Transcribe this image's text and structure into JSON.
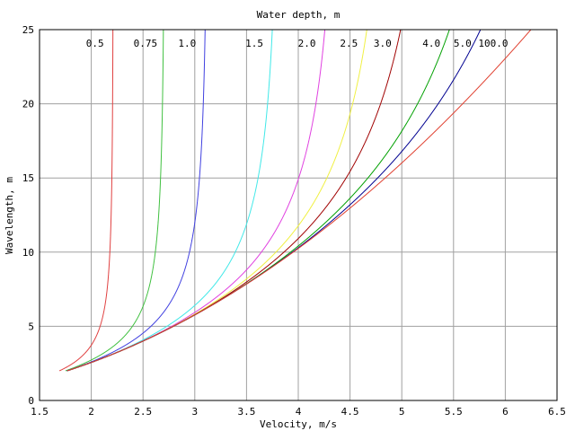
{
  "chart_data": {
    "type": "line",
    "title": "Water depth, m",
    "xlabel": "Velocity, m/s",
    "ylabel": "Wavelength, m",
    "xlim": [
      1.5,
      6.5
    ],
    "ylim": [
      0,
      25
    ],
    "x_ticks": [
      1.5,
      2,
      2.5,
      3,
      3.5,
      4,
      4.5,
      5,
      5.5,
      6,
      6.5
    ],
    "x_tick_labels": [
      "1.5",
      "2",
      "2.5",
      "3",
      "3.5",
      "4",
      "4.5",
      "5",
      "5.5",
      "6",
      "6.5"
    ],
    "y_ticks": [
      0,
      5,
      10,
      15,
      20,
      25
    ],
    "y_tick_labels": [
      "0",
      "5",
      "10",
      "15",
      "20",
      "25"
    ],
    "grid": true,
    "series": [
      {
        "name": "0.5",
        "depth": 0.5,
        "color": "#e04040"
      },
      {
        "name": "0.75",
        "depth": 0.75,
        "color": "#40c040"
      },
      {
        "name": "1.0",
        "depth": 1.0,
        "color": "#4040e0"
      },
      {
        "name": "1.5",
        "depth": 1.5,
        "color": "#40e8e8"
      },
      {
        "name": "2.0",
        "depth": 2.0,
        "color": "#e040e0"
      },
      {
        "name": "2.5",
        "depth": 2.5,
        "color": "#f0f040"
      },
      {
        "name": "3.0",
        "depth": 3.0,
        "color": "#a00000"
      },
      {
        "name": "4.0",
        "depth": 4.0,
        "color": "#00a000"
      },
      {
        "name": "5.0",
        "depth": 5.0,
        "color": "#000090"
      },
      {
        "name": "100.0",
        "depth": 100.0,
        "color": "#e04030"
      }
    ]
  }
}
